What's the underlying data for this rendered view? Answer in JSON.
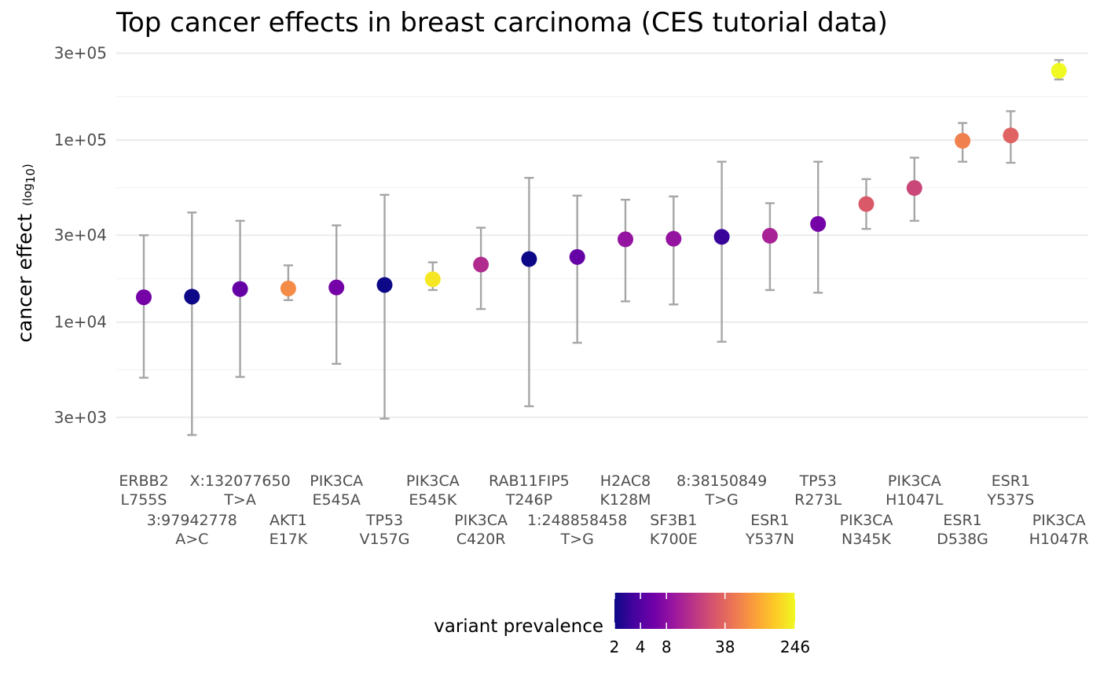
{
  "chart_data": {
    "type": "scatter",
    "title": "Top cancer effects in breast carcinoma (CES tutorial data)",
    "ylabel": "cancer effect",
    "ylabel_suffix": "(log",
    "ylabel_sub": "10",
    "ylabel_close": ")",
    "y_scale": "log10",
    "ylim": [
      1700,
      340000
    ],
    "y_ticks": [
      {
        "value": 3000,
        "label": "3e+03"
      },
      {
        "value": 10000,
        "label": "1e+04"
      },
      {
        "value": 30000,
        "label": "3e+04"
      },
      {
        "value": 100000,
        "label": "1e+05"
      },
      {
        "value": 300000,
        "label": "3e+05"
      }
    ],
    "y_minor_ticks": [
      5477,
      17321,
      54772,
      173205
    ],
    "grid": true,
    "points": [
      {
        "gene": "ERBB2",
        "variant": "L755S",
        "effect": 13700,
        "ci_low": 4950,
        "ci_high": 30000,
        "prevalence": 6
      },
      {
        "gene": "3:97942778",
        "variant": "A>C",
        "effect": 13800,
        "ci_low": 2400,
        "ci_high": 40000,
        "prevalence": 2
      },
      {
        "gene": "X:132077650",
        "variant": "T>A",
        "effect": 15200,
        "ci_low": 5000,
        "ci_high": 36000,
        "prevalence": 5
      },
      {
        "gene": "AKT1",
        "variant": "E17K",
        "effect": 15300,
        "ci_low": 13200,
        "ci_high": 20500,
        "prevalence": 64
      },
      {
        "gene": "PIK3CA",
        "variant": "E545A",
        "effect": 15500,
        "ci_low": 5900,
        "ci_high": 34000,
        "prevalence": 6
      },
      {
        "gene": "TP53",
        "variant": "V157G",
        "effect": 16000,
        "ci_low": 2950,
        "ci_high": 50000,
        "prevalence": 2
      },
      {
        "gene": "PIK3CA",
        "variant": "E545K",
        "effect": 17200,
        "ci_low": 15000,
        "ci_high": 21300,
        "prevalence": 200
      },
      {
        "gene": "PIK3CA",
        "variant": "C420R",
        "effect": 20700,
        "ci_low": 11800,
        "ci_high": 33000,
        "prevalence": 14
      },
      {
        "gene": "RAB11FIP5",
        "variant": "T246P",
        "effect": 22200,
        "ci_low": 3450,
        "ci_high": 62000,
        "prevalence": 2
      },
      {
        "gene": "1:248858458",
        "variant": "T>G",
        "effect": 22800,
        "ci_low": 7700,
        "ci_high": 49500,
        "prevalence": 5
      },
      {
        "gene": "H2AC8",
        "variant": "K128M",
        "effect": 28500,
        "ci_low": 13000,
        "ci_high": 47000,
        "prevalence": 9
      },
      {
        "gene": "SF3B1",
        "variant": "K700E",
        "effect": 28700,
        "ci_low": 12500,
        "ci_high": 49000,
        "prevalence": 9
      },
      {
        "gene": "8:38150849",
        "variant": "T>G",
        "effect": 29400,
        "ci_low": 7800,
        "ci_high": 76000,
        "prevalence": 3
      },
      {
        "gene": "ESR1",
        "variant": "Y537N",
        "effect": 29800,
        "ci_low": 15000,
        "ci_high": 45000,
        "prevalence": 12
      },
      {
        "gene": "TP53",
        "variant": "R273L",
        "effect": 34600,
        "ci_low": 14500,
        "ci_high": 76000,
        "prevalence": 6
      },
      {
        "gene": "PIK3CA",
        "variant": "N345K",
        "effect": 44500,
        "ci_low": 32500,
        "ci_high": 61000,
        "prevalence": 30
      },
      {
        "gene": "PIK3CA",
        "variant": "H1047L",
        "effect": 54500,
        "ci_low": 36000,
        "ci_high": 80000,
        "prevalence": 22
      },
      {
        "gene": "ESR1",
        "variant": "D538G",
        "effect": 99000,
        "ci_low": 76000,
        "ci_high": 124000,
        "prevalence": 55
      },
      {
        "gene": "ESR1",
        "variant": "Y537S",
        "effect": 106000,
        "ci_low": 75000,
        "ci_high": 144000,
        "prevalence": 35
      },
      {
        "gene": "PIK3CA",
        "variant": "H1047R",
        "effect": 240000,
        "ci_low": 215000,
        "ci_high": 275000,
        "prevalence": 246
      }
    ],
    "legend": {
      "title": "variant prevalence",
      "placement": "bottom",
      "scale": "log",
      "range": [
        2,
        246
      ],
      "ticks": [
        {
          "value": 2,
          "label": "2"
        },
        {
          "value": 4,
          "label": "4"
        },
        {
          "value": 8,
          "label": "8"
        },
        {
          "value": 38,
          "label": "38"
        },
        {
          "value": 246,
          "label": "246"
        }
      ],
      "colors": [
        "#0d0887",
        "#46039f",
        "#7201a8",
        "#9c179e",
        "#bd3786",
        "#d8576b",
        "#ed7953",
        "#fb9f3a",
        "#fdca26",
        "#f0f921"
      ]
    },
    "colors": {
      "error_bar": "#a6a6a6",
      "grid": "#ebebeb"
    }
  }
}
